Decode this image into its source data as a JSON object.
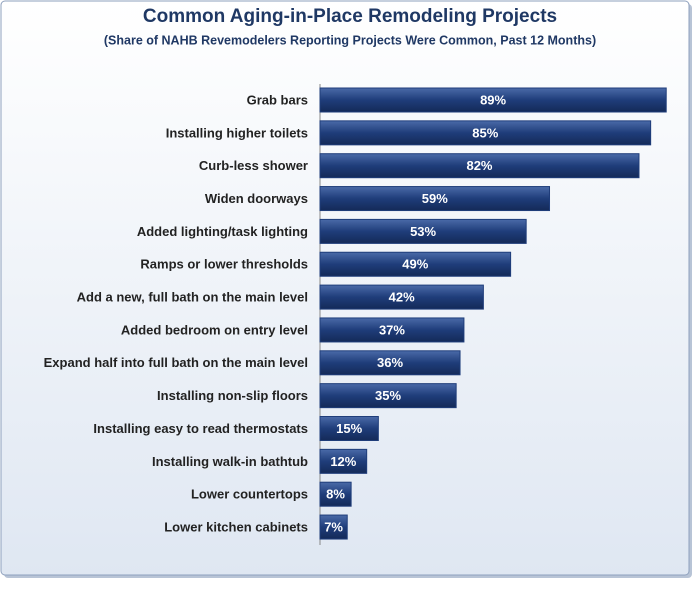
{
  "chart_data": {
    "type": "bar",
    "orientation": "horizontal",
    "title": "Common Aging-in-Place Remodeling Projects",
    "subtitle": "(Share of NAHB Revemodelers Reporting Projects Were Common, Past 12 Months)",
    "categories": [
      "Grab bars",
      "Installing higher toilets",
      "Curb-less shower",
      "Widen doorways",
      "Added lighting/task lighting",
      "Ramps or lower thresholds",
      "Add a new, full bath on the main level",
      "Added bedroom on entry level",
      "Expand half into full bath on the main level",
      "Installing non-slip floors",
      "Installing easy to read thermostats",
      "Installing walk-in bathtub",
      "Lower countertops",
      "Lower kitchen cabinets"
    ],
    "values": [
      89,
      85,
      82,
      59,
      53,
      49,
      42,
      37,
      36,
      35,
      15,
      12,
      8,
      7
    ],
    "value_labels": [
      "89%",
      "85%",
      "82%",
      "59%",
      "53%",
      "49%",
      "42%",
      "37%",
      "36%",
      "35%",
      "15%",
      "12%",
      "8%",
      "7%"
    ],
    "color": "#1f3d7a"
  }
}
